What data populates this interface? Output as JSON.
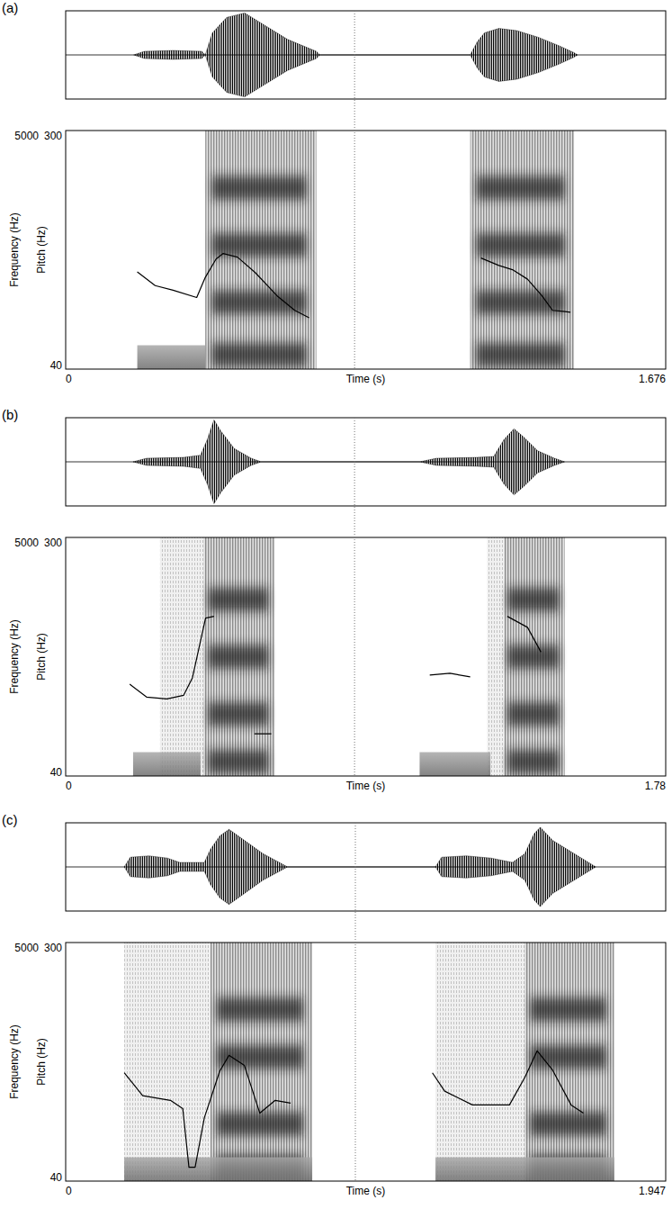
{
  "chart_data": [
    {
      "type": "spectrogram",
      "panel": "(a)",
      "x_label": "Time (s)",
      "y_label": "Frequency (Hz)",
      "y2_label": "Pitch (Hz)",
      "xlim": [
        0,
        1.676
      ],
      "xticks": [
        0,
        1.676
      ],
      "ylim": [
        0,
        5000
      ],
      "yticks": [
        5000
      ],
      "y2lim": [
        40,
        300
      ],
      "y2ticks": [
        300,
        40
      ],
      "divider": 0.807,
      "amplitude_range": [
        -1,
        1
      ],
      "waveform": {
        "x": [
          0.19,
          0.22,
          0.3,
          0.38,
          0.39,
          0.41,
          0.45,
          0.5,
          0.55,
          0.62,
          0.7,
          0.71,
          1.13,
          1.15,
          1.17,
          1.21,
          1.26,
          1.32,
          1.38,
          1.42,
          1.43
        ],
        "amplitude": [
          0,
          0.08,
          0.1,
          0.08,
          0,
          0.5,
          0.85,
          0.95,
          0.7,
          0.35,
          0.08,
          0,
          0,
          0.3,
          0.5,
          0.6,
          0.55,
          0.4,
          0.2,
          0.05,
          0
        ]
      },
      "voice_bars": [
        {
          "start": 0.2,
          "end": 0.39,
          "top": 500
        }
      ],
      "frication": [],
      "vowels": [
        {
          "start": 0.39,
          "end": 0.7,
          "formants": [
            300,
            1400,
            2600,
            3800
          ]
        },
        {
          "start": 1.13,
          "end": 1.42,
          "formants": [
            300,
            1400,
            2600,
            3800
          ]
        }
      ],
      "series": [
        {
          "axis": "y2",
          "color": "#000000",
          "x": [
            0.2,
            0.25,
            0.3,
            0.366,
            0.39,
            0.42,
            0.44,
            0.48,
            0.53,
            0.59,
            0.64,
            0.68
          ],
          "values": [
            146,
            131,
            126,
            118,
            140,
            160,
            166,
            162,
            145,
            120,
            104,
            96
          ]
        },
        {
          "axis": "y2",
          "color": "#000000",
          "x": [
            1.16,
            1.21,
            1.25,
            1.29,
            1.33,
            1.36,
            1.39,
            1.41
          ],
          "values": [
            161,
            153,
            148,
            138,
            120,
            104,
            103,
            102
          ]
        }
      ]
    },
    {
      "type": "spectrogram",
      "panel": "(b)",
      "x_label": "Time (s)",
      "y_label": "Frequency (Hz)",
      "y2_label": "Pitch (Hz)",
      "xlim": [
        0,
        1.78
      ],
      "xticks": [
        0,
        1.78
      ],
      "ylim": [
        0,
        5000
      ],
      "yticks": [
        5000
      ],
      "y2lim": [
        40,
        300
      ],
      "y2ticks": [
        300,
        40
      ],
      "divider": 0.857,
      "amplitude_range": [
        -1,
        1
      ],
      "waveform": {
        "x": [
          0.2,
          0.24,
          0.35,
          0.4,
          0.42,
          0.44,
          0.46,
          0.5,
          0.55,
          0.58,
          1.05,
          1.1,
          1.22,
          1.27,
          1.3,
          1.33,
          1.36,
          1.4,
          1.45,
          1.48
        ],
        "amplitude": [
          0,
          0.08,
          0.1,
          0.15,
          0.5,
          0.95,
          0.7,
          0.3,
          0.08,
          0,
          0,
          0.08,
          0.1,
          0.12,
          0.5,
          0.75,
          0.55,
          0.25,
          0.08,
          0
        ]
      },
      "voice_bars": [
        {
          "start": 0.2,
          "end": 0.4,
          "top": 500
        },
        {
          "start": 1.05,
          "end": 1.26,
          "top": 500
        }
      ],
      "frication": [
        {
          "start": 0.28,
          "end": 0.41
        },
        {
          "start": 1.25,
          "end": 1.3
        }
      ],
      "vowels": [
        {
          "start": 0.41,
          "end": 0.62,
          "formants": [
            300,
            1300,
            2500,
            3700
          ]
        },
        {
          "start": 1.3,
          "end": 1.48,
          "formants": [
            300,
            1300,
            2500,
            3700
          ]
        }
      ],
      "series": [
        {
          "axis": "y2",
          "color": "#000000",
          "x": [
            0.19,
            0.24,
            0.3,
            0.35,
            0.376,
            0.415,
            0.44,
            0.5,
            0.56,
            0.61
          ],
          "values": [
            140,
            126,
            124,
            128,
            147,
            212,
            214,
            null,
            86,
            86
          ]
        },
        {
          "axis": "y2",
          "color": "#000000",
          "x": [
            1.08,
            1.14,
            1.2,
            1.25,
            1.31,
            1.37,
            1.41
          ],
          "values": [
            150,
            152,
            148,
            null,
            214,
            202,
            175
          ]
        }
      ]
    },
    {
      "type": "spectrogram",
      "panel": "(c)",
      "x_label": "Time (s)",
      "y_label": "Frequency (Hz)",
      "y2_label": "Pitch (Hz)",
      "xlim": [
        0,
        1.947
      ],
      "xticks": [
        0,
        1.947
      ],
      "ylim": [
        0,
        5000
      ],
      "yticks": [
        5000
      ],
      "y2lim": [
        40,
        300
      ],
      "y2ticks": [
        300,
        40
      ],
      "divider": 0.94,
      "amplitude_range": [
        -1,
        1
      ],
      "waveform": {
        "x": [
          0.19,
          0.21,
          0.27,
          0.33,
          0.37,
          0.45,
          0.47,
          0.5,
          0.53,
          0.58,
          0.64,
          0.72,
          1.2,
          1.22,
          1.3,
          1.38,
          1.45,
          1.49,
          1.52,
          1.54,
          1.58,
          1.65,
          1.72
        ],
        "amplitude": [
          0,
          0.22,
          0.25,
          0.2,
          0.1,
          0.1,
          0.4,
          0.7,
          0.85,
          0.6,
          0.3,
          0,
          0,
          0.22,
          0.25,
          0.2,
          0.1,
          0.3,
          0.75,
          0.9,
          0.6,
          0.3,
          0
        ]
      },
      "voice_bars": [
        {
          "start": 0.19,
          "end": 0.8,
          "top": 500
        },
        {
          "start": 1.2,
          "end": 1.78,
          "top": 500
        }
      ],
      "frication": [
        {
          "start": 0.19,
          "end": 0.47
        },
        {
          "start": 1.2,
          "end": 1.49
        }
      ],
      "vowels": [
        {
          "start": 0.47,
          "end": 0.8,
          "formants": [
            300,
            1200,
            2600,
            3600
          ]
        },
        {
          "start": 1.49,
          "end": 1.78,
          "formants": [
            300,
            1200,
            2600,
            3600
          ]
        }
      ],
      "series": [
        {
          "axis": "y2",
          "color": "#000000",
          "x": [
            0.19,
            0.25,
            0.34,
            0.38,
            0.4,
            0.42,
            0.45,
            0.5,
            0.53,
            0.58,
            0.63,
            0.68,
            0.73
          ],
          "values": [
            158,
            133,
            128,
            119,
            55,
            55,
            109,
            160,
            177,
            166,
            114,
            128,
            125
          ]
        },
        {
          "axis": "y2",
          "color": "#000000",
          "x": [
            1.19,
            1.23,
            1.32,
            1.44,
            1.49,
            1.53,
            1.58,
            1.64,
            1.68
          ],
          "values": [
            158,
            138,
            123,
            123,
            153,
            182,
            161,
            123,
            114
          ]
        }
      ]
    }
  ]
}
